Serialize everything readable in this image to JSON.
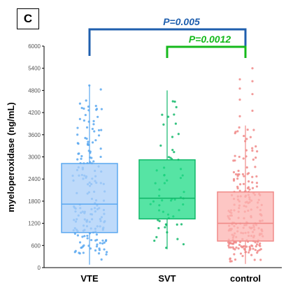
{
  "panel_label": "C",
  "chart_data": {
    "type": "box",
    "ylabel": "myeloperoxidase (ng/mL)",
    "ylim": [
      0,
      6000
    ],
    "yticks": [
      0,
      600,
      1200,
      1800,
      2400,
      3000,
      3600,
      4200,
      4800,
      5400,
      6000
    ],
    "categories": [
      "VTE",
      "SVT",
      "control"
    ],
    "boxes": [
      {
        "name": "VTE",
        "q1": 950,
        "median": 1720,
        "q3": 2820,
        "whisker_low": 80,
        "whisker_high": 4950,
        "n_points": 180,
        "color": "#5aa8f0",
        "fill": "#a8cdf8"
      },
      {
        "name": "SVT",
        "q1": 1320,
        "median": 1880,
        "q3": 2920,
        "whisker_low": 500,
        "whisker_high": 4800,
        "n_points": 60,
        "color": "#12b86a",
        "fill": "#1edb86"
      },
      {
        "name": "control",
        "q1": 720,
        "median": 1200,
        "q3": 2050,
        "whisker_low": 100,
        "whisker_high": 3850,
        "n_points": 230,
        "color": "#f08a88",
        "fill": "#fcb3b0",
        "outliers_above": true
      }
    ],
    "comparisons": [
      {
        "from": "VTE",
        "to": "control",
        "label": "P=0.005",
        "color": "#1f5fae"
      },
      {
        "from": "SVT",
        "to": "control",
        "label": "P=0.0012",
        "color": "#15b91b"
      }
    ]
  }
}
